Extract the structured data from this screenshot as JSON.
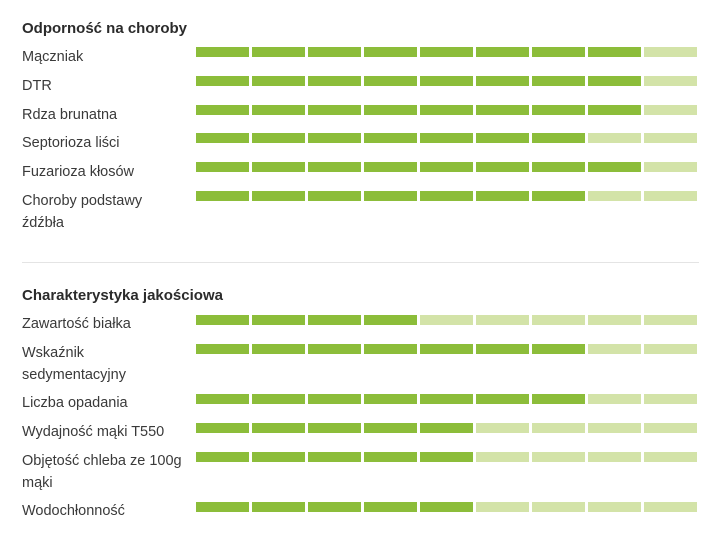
{
  "colors": {
    "filled": "#8cbd3a",
    "empty": "#d3e3a8"
  },
  "segments_total": 9,
  "disease": {
    "title": "Odporność na choroby",
    "rows": [
      {
        "label": "Mączniak",
        "score": 8
      },
      {
        "label": "DTR",
        "score": 8
      },
      {
        "label": "Rdza brunatna",
        "score": 8
      },
      {
        "label": "Septorioza liści",
        "score": 7
      },
      {
        "label": "Fuzarioza kłosów",
        "score": 8
      },
      {
        "label": "Choroby podstawy źdźbła",
        "score": 7
      }
    ]
  },
  "quality": {
    "title": "Charakterystyka jakościowa",
    "rows": [
      {
        "label": "Zawartość białka",
        "score": 4
      },
      {
        "label": "Wskaźnik sedymentacyjny",
        "score": 7
      },
      {
        "label": "Liczba opadania",
        "score": 7
      },
      {
        "label": "Wydajność mąki T550",
        "score": 5
      },
      {
        "label": "Objętość chleba ze 100g mąki",
        "score": 5
      },
      {
        "label": "Wodochłonność",
        "score": 5
      }
    ]
  }
}
